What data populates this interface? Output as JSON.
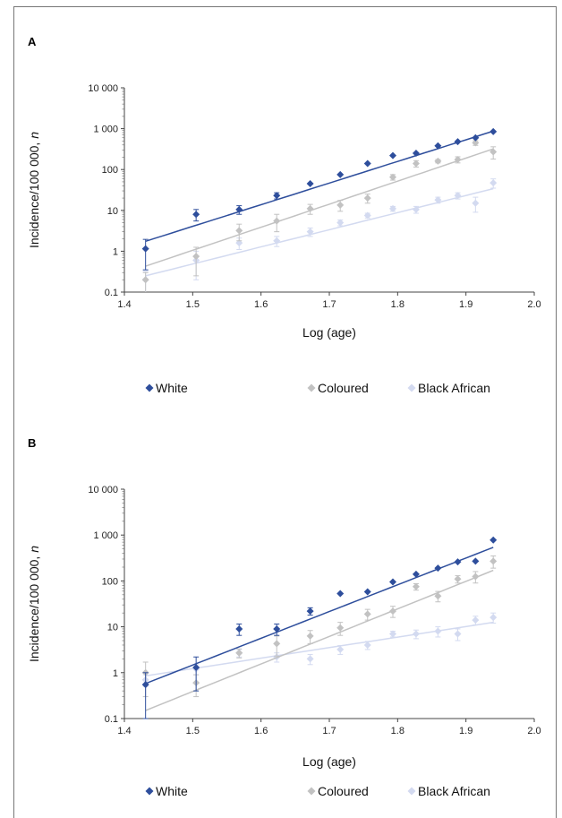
{
  "chart_data": [
    {
      "type": "scatter",
      "panel_label": "A",
      "xlabel": "Log (age)",
      "ylabel": "Incidence/100 000, ",
      "ylabel_italic": "n",
      "yscale": "log",
      "xlim": [
        1.4,
        2.0
      ],
      "ylim": [
        0.1,
        10000
      ],
      "xticks": [
        "1.4",
        "1.5",
        "1.6",
        "1.7",
        "1.8",
        "1.9",
        "2.0"
      ],
      "yticks": [
        "0.1",
        "1",
        "10",
        "100",
        "1 000",
        "10 000"
      ],
      "legend_position": "bottom",
      "series": [
        {
          "name": "White",
          "color": "#2e4e9c",
          "x": [
            1.431,
            1.505,
            1.568,
            1.623,
            1.672,
            1.716,
            1.756,
            1.793,
            1.827,
            1.859,
            1.888,
            1.914,
            1.94
          ],
          "y": [
            1.15,
            8,
            10.5,
            23,
            45,
            75,
            140,
            220,
            250,
            380,
            480,
            600,
            850
          ],
          "err": [
            0.8,
            2.5,
            2.5,
            4,
            0,
            0,
            0,
            0,
            0,
            0,
            0,
            0,
            0
          ],
          "fit": {
            "x": [
              1.431,
              1.94
            ],
            "y": [
              1.75,
              870
            ]
          }
        },
        {
          "name": "Coloured",
          "color": "#c2c2c2",
          "x": [
            1.431,
            1.505,
            1.568,
            1.623,
            1.672,
            1.716,
            1.756,
            1.793,
            1.827,
            1.859,
            1.888,
            1.914,
            1.94
          ],
          "y": [
            0.2,
            0.75,
            3.2,
            5.5,
            11,
            13.5,
            20,
            65,
            140,
            160,
            175,
            450,
            270
          ],
          "err": [
            0.1,
            0.5,
            1.4,
            2.5,
            3,
            4,
            5,
            10,
            25,
            15,
            30,
            60,
            90
          ],
          "fit": {
            "x": [
              1.431,
              1.94
            ],
            "y": [
              0.43,
              320
            ]
          }
        },
        {
          "name": "Black African",
          "color": "#d3daf0",
          "x": [
            1.431,
            1.505,
            1.568,
            1.623,
            1.672,
            1.716,
            1.756,
            1.793,
            1.827,
            1.859,
            1.888,
            1.914,
            1.94
          ],
          "y": [
            0.2,
            0.6,
            1.6,
            1.8,
            3,
            5,
            7.5,
            11,
            10.5,
            18,
            23,
            15,
            47
          ],
          "err": [
            0.12,
            0.4,
            0.5,
            0.5,
            0.7,
            0.8,
            1,
            1.5,
            2,
            3,
            4,
            6,
            12
          ],
          "fit": {
            "x": [
              1.431,
              1.94
            ],
            "y": [
              0.25,
              34
            ]
          }
        }
      ]
    },
    {
      "type": "scatter",
      "panel_label": "B",
      "xlabel": "Log (age)",
      "ylabel": "Incidence/100 000, ",
      "ylabel_italic": "n",
      "yscale": "log",
      "xlim": [
        1.4,
        2.0
      ],
      "ylim": [
        0.1,
        10000
      ],
      "xticks": [
        "1.4",
        "1.5",
        "1.6",
        "1.7",
        "1.8",
        "1.9",
        "2.0"
      ],
      "yticks": [
        "0.1",
        "1",
        "10",
        "100",
        "1 000",
        "10 000"
      ],
      "legend_position": "bottom",
      "series": [
        {
          "name": "White",
          "color": "#2e4e9c",
          "x": [
            1.431,
            1.505,
            1.568,
            1.623,
            1.672,
            1.716,
            1.756,
            1.793,
            1.827,
            1.859,
            1.888,
            1.914,
            1.94
          ],
          "y": [
            0.55,
            1.3,
            9,
            9,
            22,
            53,
            58,
            95,
            140,
            190,
            260,
            270,
            780
          ],
          "err": [
            0.45,
            0.9,
            2.5,
            2.5,
            4,
            0,
            0,
            0,
            0,
            0,
            0,
            0,
            0
          ],
          "fit": {
            "x": [
              1.431,
              1.94
            ],
            "y": [
              0.58,
              540
            ]
          }
        },
        {
          "name": "Coloured",
          "color": "#c2c2c2",
          "x": [
            1.431,
            1.505,
            1.568,
            1.623,
            1.672,
            1.716,
            1.756,
            1.793,
            1.827,
            1.859,
            1.888,
            1.914,
            1.94
          ],
          "y": [
            1,
            0.6,
            2.7,
            4.3,
            6.3,
            9.5,
            19,
            22,
            75,
            47,
            110,
            125,
            270
          ],
          "err": [
            0.7,
            0.3,
            0.6,
            2,
            2,
            3,
            5,
            6,
            12,
            12,
            20,
            35,
            80
          ],
          "fit": {
            "x": [
              1.431,
              1.94
            ],
            "y": [
              0.15,
              170
            ]
          }
        },
        {
          "name": "Black African",
          "color": "#d3daf0",
          "x": [
            1.431,
            1.505,
            1.568,
            1.623,
            1.672,
            1.716,
            1.756,
            1.793,
            1.827,
            1.859,
            1.888,
            1.914,
            1.94
          ],
          "y": [
            0.7,
            1.2,
            2.7,
            2.2,
            2,
            3.2,
            4,
            7,
            7,
            8,
            7,
            14,
            16
          ],
          "err": [
            0.2,
            0.3,
            0.5,
            0.5,
            0.5,
            0.7,
            0.8,
            1,
            1.5,
            2,
            2,
            3,
            4
          ],
          "fit": {
            "x": [
              1.431,
              1.94
            ],
            "y": [
              0.85,
              12.5
            ]
          }
        }
      ]
    }
  ]
}
